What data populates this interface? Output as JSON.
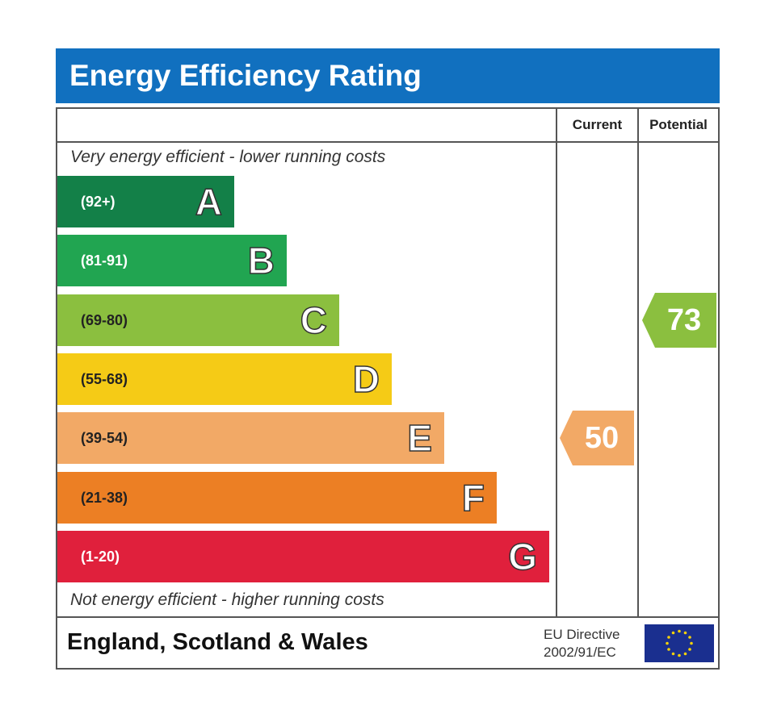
{
  "title": "Energy Efficiency Rating",
  "columns": {
    "current": "Current",
    "potential": "Potential"
  },
  "top_note": "Very energy efficient - lower running costs",
  "bottom_note": "Not energy efficient - higher running costs",
  "region": "England, Scotland & Wales",
  "directive": {
    "line1": "EU Directive",
    "line2": "2002/91/EC"
  },
  "flag_icon": "eu-flag-icon",
  "chart_data": {
    "type": "bar",
    "categories": [
      "A",
      "B",
      "C",
      "D",
      "E",
      "F",
      "G"
    ],
    "ranges": [
      "(92+)",
      "(81-91)",
      "(69-80)",
      "(55-68)",
      "(39-54)",
      "(21-38)",
      "(1-20)"
    ],
    "colors": [
      "#138048",
      "#21a551",
      "#8bbf3f",
      "#f5cb16",
      "#f2a966",
      "#ec7f24",
      "#e0203c"
    ],
    "current": {
      "value": 50,
      "band": "E",
      "color": "#f2a966"
    },
    "potential": {
      "value": 73,
      "band": "C",
      "color": "#8bbf3f"
    }
  }
}
